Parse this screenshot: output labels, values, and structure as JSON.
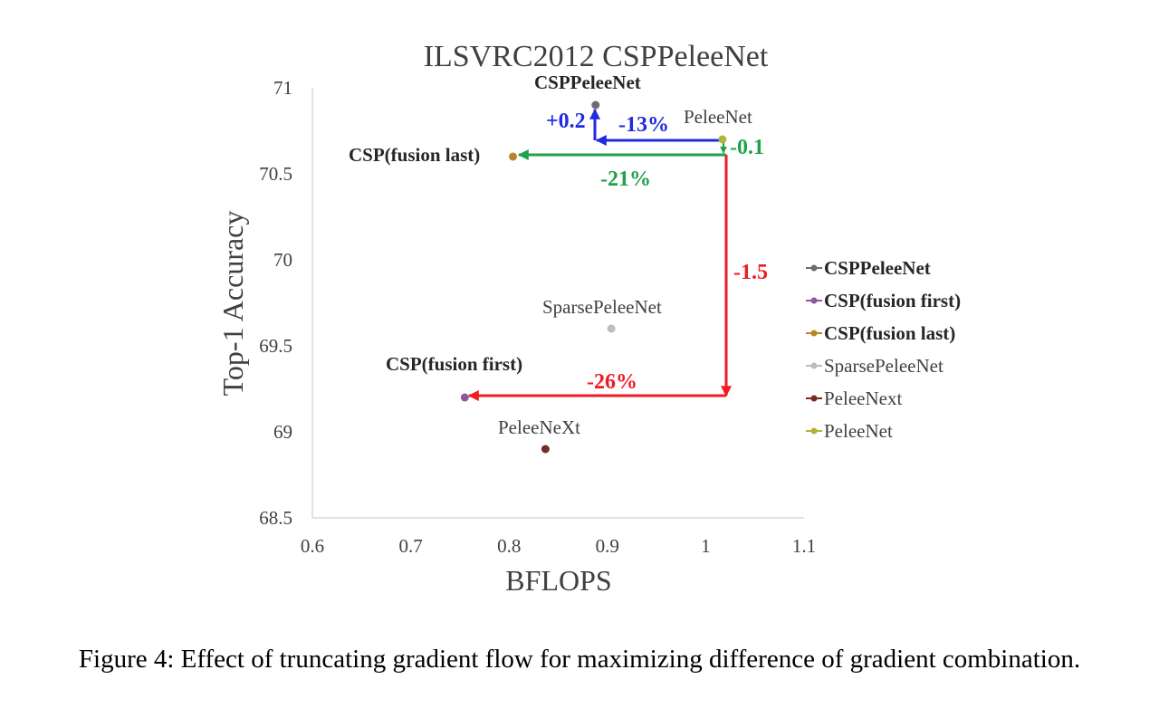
{
  "chart_data": {
    "type": "scatter",
    "title": "ILSVRC2012 CSPPeleeNet",
    "xlabel": "BFLOPS",
    "ylabel": "Top-1 Accuracy",
    "xlim": [
      0.6,
      1.1
    ],
    "ylim": [
      68.5,
      71
    ],
    "x_ticks": [
      "0.6",
      "0.7",
      "0.8",
      "0.9",
      "1",
      "1.1"
    ],
    "y_ticks": [
      "68.5",
      "69",
      "69.5",
      "70",
      "70.5",
      "71"
    ],
    "grid": false,
    "legend_position": "right",
    "series": [
      {
        "name": "CSPPeleeNet",
        "label": "CSPPeleeNet",
        "x": 0.888,
        "y": 70.9,
        "color": "#6e6e6e",
        "bold": true
      },
      {
        "name": "CSP(fusion first)",
        "label": "CSP(fusion first)",
        "x": 0.755,
        "y": 69.2,
        "color": "#8c5a9c",
        "bold": true
      },
      {
        "name": "CSP(fusion last)",
        "label": "CSP(fusion last)",
        "x": 0.804,
        "y": 70.6,
        "color": "#b8862a",
        "bold": true
      },
      {
        "name": "SparsePeleeNet",
        "label": "SparsePeleeNet",
        "x": 0.904,
        "y": 69.6,
        "color": "#bdbdbd",
        "bold": false
      },
      {
        "name": "PeleeNext",
        "label": "PeleeNeXt",
        "x": 0.837,
        "y": 68.9,
        "color": "#7a2a22",
        "bold": false
      },
      {
        "name": "PeleeNet",
        "label": "PeleeNet",
        "x": 1.017,
        "y": 70.7,
        "color": "#b3b33a",
        "bold": false
      }
    ],
    "annotations": [
      {
        "text": "+0.2",
        "color": "#1f2be0"
      },
      {
        "text": "-13%",
        "color": "#1f2be0"
      },
      {
        "text": "-0.1",
        "color": "#1fa34a"
      },
      {
        "text": "-21%",
        "color": "#1fa34a"
      },
      {
        "text": "-1.5",
        "color": "#ee1c25"
      },
      {
        "text": "-26%",
        "color": "#ee1c25"
      }
    ]
  },
  "caption": "Figure 4: Effect of truncating gradient flow for maximizing difference of gradient combination."
}
